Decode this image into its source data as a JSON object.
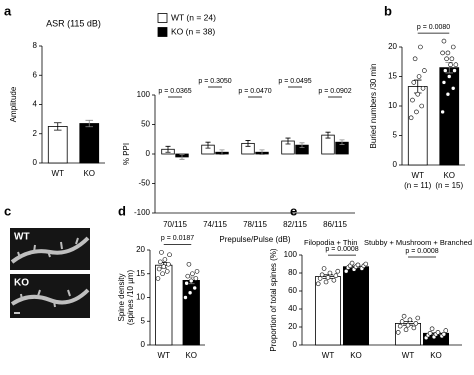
{
  "chart_data": [
    {
      "type": "bar",
      "panel": "a",
      "title": "ASR (115 dB)",
      "ylabel": "Amplitude",
      "categories": [
        "WT",
        "KO"
      ],
      "values": [
        2.5,
        2.7
      ],
      "errors": [
        0.25,
        0.22
      ],
      "colors": [
        "#ffffff",
        "#000000"
      ],
      "ylim": [
        0,
        8
      ],
      "yticks": [
        0,
        2,
        4,
        6,
        8
      ]
    },
    {
      "type": "grouped_bar",
      "ylabel": "% PPI",
      "xlabel": "Prepulse/Pulse (dB)",
      "categories": [
        "70/115",
        "74/115",
        "78/115",
        "82/115",
        "86/115"
      ],
      "series": [
        {
          "name": "WT (n = 24)",
          "color": "#ffffff",
          "values": [
            8,
            15,
            18,
            22,
            32
          ],
          "errors": [
            5,
            5,
            5,
            5,
            5
          ]
        },
        {
          "name": "KO (n = 38)",
          "color": "#000000",
          "values": [
            -5,
            3,
            3,
            15,
            20
          ],
          "errors": [
            4,
            4,
            4,
            4,
            4
          ]
        }
      ],
      "p_labels": [
        "p = 0.0365",
        "p = 0.3050",
        "p = 0.0470",
        "p = 0.0495",
        "p = 0.0902"
      ],
      "legend": "top-left",
      "ylim": [
        -100,
        100
      ],
      "yticks": [
        -100,
        -50,
        0,
        50,
        100
      ]
    },
    {
      "type": "bar",
      "panel": "b",
      "ylabel": "Buried numbers /30 min",
      "categories": [
        "WT",
        "KO"
      ],
      "category_notes": [
        "(n = 11)",
        "(n = 15)"
      ],
      "values": [
        13.3,
        16.5
      ],
      "errors": [
        1.1,
        0.9
      ],
      "colors": [
        "#ffffff",
        "#000000"
      ],
      "points": [
        [
          8,
          9,
          10,
          11,
          12,
          13,
          14,
          15,
          16,
          18,
          20
        ],
        [
          9,
          12,
          13,
          14,
          15,
          16,
          16,
          17,
          17,
          18,
          18,
          19,
          19,
          20,
          21
        ]
      ],
      "p_labels": [
        "p = 0.0080"
      ],
      "ylim": [
        0,
        20
      ],
      "yticks": [
        0,
        5,
        10,
        15,
        20
      ]
    },
    {
      "type": "bar",
      "panel": "d",
      "ylabel": [
        "Spine density",
        "(spines /10 µm)"
      ],
      "categories": [
        "WT",
        "KO"
      ],
      "values": [
        16.8,
        13.6
      ],
      "errors": [
        0.6,
        0.7
      ],
      "colors": [
        "#ffffff",
        "#000000"
      ],
      "points": [
        [
          14,
          15,
          15.5,
          16,
          16.5,
          17,
          17.5,
          18,
          19,
          19.5
        ],
        [
          10,
          11,
          12,
          13,
          13.5,
          14,
          14.5,
          15,
          15.5,
          17
        ]
      ],
      "p_labels": [
        "p = 0.0187"
      ],
      "ylim": [
        0,
        20
      ],
      "yticks": [
        0,
        5,
        10,
        15,
        20
      ]
    },
    {
      "type": "grouped_bar",
      "panel": "e",
      "ylabel": "Proportion of total spines (%)",
      "bar_labels": true,
      "categories": [
        "Filopodia + Thin",
        "Stubby + Mushroom + Branched"
      ],
      "series": [
        {
          "name": "WT",
          "color": "#ffffff",
          "values": [
            76,
            24
          ],
          "errors": [
            2,
            2
          ],
          "points": [
            [
              68,
              70,
              72,
              74,
              75,
              77,
              78,
              80,
              82,
              85
            ],
            [
              14,
              17,
              19,
              21,
              22,
              24,
              26,
              28,
              30,
              32
            ]
          ]
        },
        {
          "name": "KO",
          "color": "#000000",
          "values": [
            87,
            13
          ],
          "errors": [
            1,
            1
          ],
          "points": [
            [
              82,
              84,
              85,
              86,
              87,
              88,
              88,
              89,
              90,
              91
            ],
            [
              8,
              9,
              10,
              11,
              12,
              12,
              13,
              14,
              16,
              18
            ]
          ]
        }
      ],
      "p_labels": [
        "p = 0.0008",
        "p = 0.0008"
      ],
      "ylim": [
        0,
        100
      ],
      "yticks": [
        0,
        20,
        40,
        60,
        80,
        100
      ]
    }
  ],
  "images": {
    "panel": "c",
    "labels": [
      "WT",
      "KO"
    ]
  }
}
